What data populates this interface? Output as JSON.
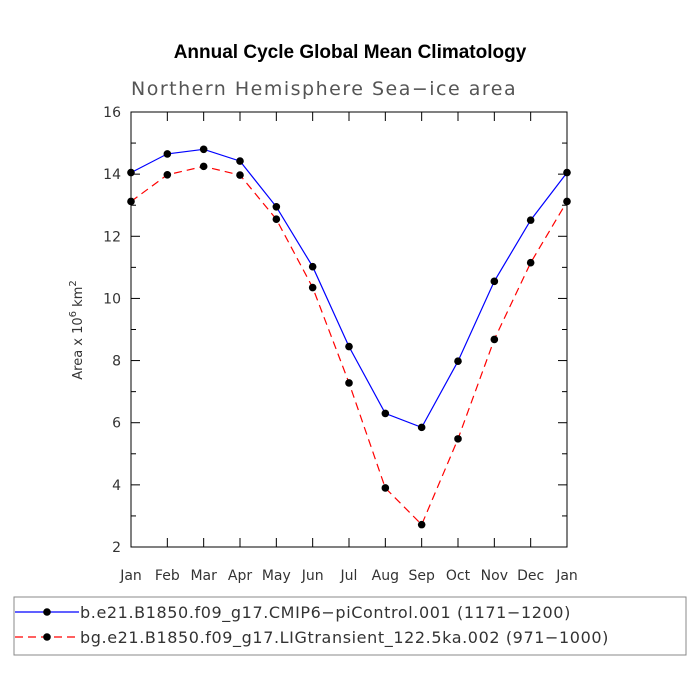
{
  "title": "Annual Cycle Global Mean Climatology",
  "subtitle": "Northern Hemisphere Sea−ice area",
  "ylabel_main": "Area x 10",
  "ylabel_sup1": "6",
  "ylabel_mid": " km",
  "ylabel_sup2": "2",
  "chart_data": {
    "type": "line",
    "title": "Annual Cycle Global Mean Climatology",
    "subtitle": "Northern Hemisphere Sea−ice area",
    "xlabel": "",
    "ylabel": "Area x 10^6 km^2",
    "ylim": [
      2,
      16
    ],
    "yticks": [
      2,
      4,
      6,
      8,
      10,
      12,
      14,
      16
    ],
    "categories": [
      "Jan",
      "Feb",
      "Mar",
      "Apr",
      "May",
      "Jun",
      "Jul",
      "Aug",
      "Sep",
      "Oct",
      "Nov",
      "Dec",
      "Jan"
    ],
    "grid": false,
    "legend_position": "bottom",
    "series": [
      {
        "name": "b.e21.B1850.f09_g17.CMIP6−piControl.001 (1171−1200)",
        "color": "#0000ff",
        "dash": "solid",
        "marker": "filled-circle",
        "values": [
          14.05,
          14.65,
          14.8,
          14.42,
          12.95,
          11.02,
          8.45,
          6.3,
          5.85,
          7.98,
          10.55,
          12.52,
          14.05
        ]
      },
      {
        "name": "bg.e21.B1850.f09_g17.LIGtransient_122.5ka.002 (971−1000)",
        "color": "#ff0000",
        "dash": "dashed",
        "marker": "filled-circle",
        "values": [
          13.12,
          13.98,
          14.25,
          13.97,
          12.55,
          10.35,
          7.28,
          3.9,
          2.72,
          5.48,
          8.68,
          11.15,
          13.12
        ]
      }
    ]
  }
}
